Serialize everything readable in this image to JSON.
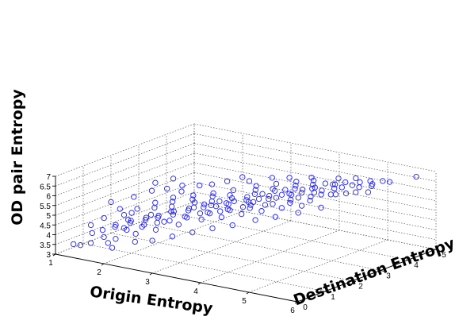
{
  "chart_data": {
    "type": "scatter",
    "projection": "3d",
    "xlabel": "Origin Entropy",
    "ylabel": "Destination Entropy",
    "zlabel": "OD pair Entropy",
    "xlim": [
      1,
      6
    ],
    "ylim": [
      0,
      5
    ],
    "zlim": [
      3,
      7
    ],
    "xticks": [
      "1",
      "2",
      "3",
      "4",
      "5",
      "6"
    ],
    "yticks": [
      "0",
      "1",
      "2",
      "3",
      "4",
      "5"
    ],
    "zticks": [
      "3",
      "3.5",
      "4",
      "4.5",
      "5",
      "5.5",
      "6",
      "6.5",
      "7"
    ],
    "grid": true,
    "marker": "circle-open",
    "marker_color": "#1f1fff",
    "points": [
      [
        5.85,
        4.55,
        6.9
      ],
      [
        5.0,
        4.0,
        6.5
      ],
      [
        5.1,
        3.8,
        6.4
      ],
      [
        4.9,
        3.9,
        6.35
      ],
      [
        5.2,
        4.1,
        6.45
      ],
      [
        5.3,
        4.3,
        6.55
      ],
      [
        4.8,
        3.7,
        6.3
      ],
      [
        4.7,
        3.6,
        6.25
      ],
      [
        5.0,
        3.5,
        6.2
      ],
      [
        4.6,
        3.8,
        6.3
      ],
      [
        5.1,
        4.2,
        6.5
      ],
      [
        4.5,
        3.5,
        6.1
      ],
      [
        4.4,
        3.4,
        6.0
      ],
      [
        4.6,
        3.3,
        6.05
      ],
      [
        4.3,
        3.6,
        6.1
      ],
      [
        4.5,
        3.9,
        6.2
      ],
      [
        4.2,
        3.3,
        5.95
      ],
      [
        4.0,
        3.2,
        5.85
      ],
      [
        4.1,
        3.5,
        5.95
      ],
      [
        3.9,
        3.1,
        5.8
      ],
      [
        4.3,
        3.0,
        5.9
      ],
      [
        3.8,
        3.4,
        5.85
      ],
      [
        3.7,
        3.0,
        5.7
      ],
      [
        3.6,
        2.8,
        5.6
      ],
      [
        3.9,
        2.9,
        5.75
      ],
      [
        3.5,
        3.1,
        5.65
      ],
      [
        3.4,
        2.7,
        5.5
      ],
      [
        3.6,
        2.5,
        5.45
      ],
      [
        3.3,
        2.9,
        5.5
      ],
      [
        3.2,
        2.6,
        5.4
      ],
      [
        3.5,
        2.4,
        5.35
      ],
      [
        3.1,
        2.5,
        5.3
      ],
      [
        3.0,
        2.3,
        5.2
      ],
      [
        3.3,
        2.2,
        5.25
      ],
      [
        2.9,
        2.6,
        5.25
      ],
      [
        2.8,
        2.2,
        5.1
      ],
      [
        3.0,
        2.0,
        5.05
      ],
      [
        2.7,
        2.4,
        5.1
      ],
      [
        2.6,
        2.0,
        4.95
      ],
      [
        2.9,
        1.9,
        5.0
      ],
      [
        2.5,
        2.2,
        4.9
      ],
      [
        2.4,
        1.8,
        4.75
      ],
      [
        2.7,
        1.7,
        4.85
      ],
      [
        2.3,
        2.0,
        4.75
      ],
      [
        2.2,
        1.6,
        4.6
      ],
      [
        2.5,
        1.5,
        4.65
      ],
      [
        2.1,
        1.8,
        4.55
      ],
      [
        2.0,
        1.5,
        4.45
      ],
      [
        2.3,
        1.4,
        4.5
      ],
      [
        1.9,
        1.7,
        4.4
      ],
      [
        1.8,
        1.3,
        4.3
      ],
      [
        2.1,
        1.2,
        4.3
      ],
      [
        1.7,
        1.5,
        4.25
      ],
      [
        1.6,
        1.1,
        4.1
      ],
      [
        1.9,
        1.0,
        4.15
      ],
      [
        1.5,
        1.3,
        4.05
      ],
      [
        4.4,
        3.8,
        6.25
      ],
      [
        4.7,
        4.0,
        6.35
      ],
      [
        4.2,
        3.7,
        6.15
      ],
      [
        3.9,
        3.6,
        6.0
      ],
      [
        3.6,
        3.3,
        5.85
      ],
      [
        3.3,
        3.2,
        5.7
      ],
      [
        3.0,
        2.8,
        5.5
      ],
      [
        2.7,
        2.7,
        5.35
      ],
      [
        2.4,
        2.5,
        5.15
      ],
      [
        2.1,
        2.3,
        5.0
      ],
      [
        4.6,
        2.9,
        5.95
      ],
      [
        4.3,
        2.7,
        5.8
      ],
      [
        4.0,
        2.6,
        5.65
      ],
      [
        3.7,
        2.3,
        5.45
      ],
      [
        3.4,
        2.1,
        5.3
      ],
      [
        3.1,
        1.9,
        5.1
      ],
      [
        2.8,
        1.6,
        4.9
      ],
      [
        2.5,
        1.3,
        4.7
      ],
      [
        2.2,
        1.1,
        4.5
      ],
      [
        1.9,
        0.9,
        4.3
      ],
      [
        5.2,
        3.5,
        6.35
      ],
      [
        4.9,
        3.3,
        6.2
      ],
      [
        4.1,
        3.9,
        6.2
      ],
      [
        3.8,
        3.8,
        6.05
      ],
      [
        3.5,
        3.6,
        5.9
      ],
      [
        3.2,
        3.4,
        5.75
      ],
      [
        2.9,
        3.1,
        5.55
      ],
      [
        2.6,
        2.9,
        5.35
      ],
      [
        2.3,
        2.7,
        5.2
      ],
      [
        2.0,
        2.5,
        5.05
      ],
      [
        1.8,
        2.2,
        4.85
      ],
      [
        1.6,
        1.9,
        4.6
      ],
      [
        1.5,
        1.6,
        4.4
      ],
      [
        1.4,
        1.0,
        3.9
      ],
      [
        1.6,
        0.7,
        3.8
      ],
      [
        1.9,
        0.6,
        3.9
      ],
      [
        2.2,
        0.8,
        4.2
      ],
      [
        2.5,
        1.0,
        4.45
      ],
      [
        2.8,
        1.3,
        4.7
      ],
      [
        3.1,
        1.6,
        4.95
      ],
      [
        3.4,
        1.8,
        5.1
      ],
      [
        3.7,
        2.0,
        5.3
      ],
      [
        4.0,
        2.2,
        5.5
      ],
      [
        4.3,
        2.4,
        5.7
      ],
      [
        4.6,
        2.6,
        5.85
      ],
      [
        1.5,
        2.6,
        5.1
      ],
      [
        1.4,
        2.9,
        5.3
      ],
      [
        1.3,
        2.3,
        4.85
      ],
      [
        1.7,
        2.8,
        5.2
      ],
      [
        1.9,
        3.0,
        5.35
      ],
      [
        2.2,
        3.1,
        5.45
      ],
      [
        2.0,
        2.8,
        5.2
      ],
      [
        1.6,
        3.2,
        5.45
      ],
      [
        2.4,
        3.2,
        5.55
      ],
      [
        2.6,
        3.4,
        5.7
      ],
      [
        1.2,
        0.3,
        3.45
      ],
      [
        1.4,
        0.2,
        3.55
      ],
      [
        1.8,
        0.5,
        3.7
      ],
      [
        1.5,
        0.4,
        3.6
      ],
      [
        2.0,
        0.3,
        3.65
      ],
      [
        2.3,
        0.6,
        3.95
      ],
      [
        2.6,
        0.7,
        4.1
      ],
      [
        2.9,
        0.9,
        4.35
      ],
      [
        3.2,
        1.1,
        4.6
      ],
      [
        3.5,
        1.3,
        4.85
      ],
      [
        3.8,
        1.5,
        5.05
      ],
      [
        4.1,
        1.8,
        5.3
      ],
      [
        4.4,
        2.0,
        5.5
      ],
      [
        4.7,
        2.3,
        5.7
      ],
      [
        5.0,
        2.6,
        5.95
      ],
      [
        1.3,
        1.8,
        4.5
      ],
      [
        1.2,
        1.4,
        4.2
      ],
      [
        1.1,
        1.1,
        3.95
      ],
      [
        1.3,
        0.8,
        3.8
      ],
      [
        1.0,
        2.0,
        4.6
      ],
      [
        5.3,
        3.9,
        6.5
      ],
      [
        5.5,
        4.2,
        6.65
      ],
      [
        4.8,
        4.2,
        6.5
      ],
      [
        4.5,
        4.1,
        6.4
      ],
      [
        5.4,
        3.6,
        6.4
      ],
      [
        3.0,
        3.5,
        5.85
      ],
      [
        2.8,
        3.6,
        5.9
      ],
      [
        3.6,
        3.9,
        6.1
      ],
      [
        3.3,
        3.8,
        6.0
      ],
      [
        4.0,
        4.0,
        6.25
      ],
      [
        3.2,
        2.1,
        5.15
      ],
      [
        3.6,
        2.6,
        5.55
      ],
      [
        3.9,
        2.5,
        5.6
      ],
      [
        4.2,
        2.9,
        5.8
      ],
      [
        4.5,
        3.1,
        6.0
      ],
      [
        4.8,
        3.3,
        6.15
      ],
      [
        4.1,
        3.1,
        5.9
      ],
      [
        3.8,
        2.8,
        5.7
      ],
      [
        3.5,
        2.6,
        5.5
      ],
      [
        3.2,
        2.4,
        5.35
      ],
      [
        2.9,
        2.3,
        5.2
      ],
      [
        2.6,
        2.2,
        5.0
      ],
      [
        2.3,
        1.9,
        4.8
      ],
      [
        2.0,
        1.7,
        4.6
      ],
      [
        1.7,
        1.4,
        4.35
      ],
      [
        3.7,
        3.2,
        5.85
      ],
      [
        4.0,
        3.4,
        6.0
      ],
      [
        4.3,
        3.5,
        6.1
      ],
      [
        3.4,
        3.0,
        5.65
      ],
      [
        3.1,
        2.7,
        5.45
      ],
      [
        2.8,
        2.5,
        5.25
      ],
      [
        2.5,
        2.4,
        5.1
      ],
      [
        2.2,
        2.1,
        4.9
      ],
      [
        1.9,
        2.0,
        4.75
      ],
      [
        1.6,
        1.7,
        4.5
      ]
    ]
  }
}
